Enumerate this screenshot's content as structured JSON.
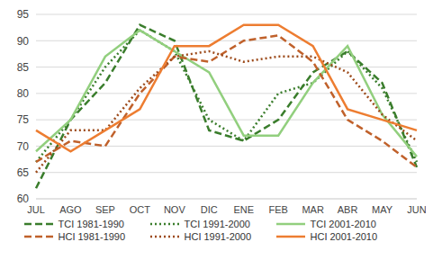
{
  "chart_data": {
    "type": "line",
    "categories": [
      "JUL",
      "AGO",
      "SEP",
      "OCT",
      "NOV",
      "DIC",
      "ENE",
      "FEB",
      "MAR",
      "ABR",
      "MAY",
      "JUN"
    ],
    "series": [
      {
        "name": "TCI 1981-1990",
        "color": "#3a7d2c",
        "line_style": "dashed",
        "values": [
          62,
          75,
          82,
          93,
          90,
          73,
          71,
          75,
          84,
          88,
          82,
          66
        ]
      },
      {
        "name": "TCI 1991-2000",
        "color": "#3a7d2c",
        "line_style": "dotted",
        "values": [
          67,
          75,
          85,
          92,
          88,
          75,
          71,
          80,
          82,
          88,
          81,
          67
        ]
      },
      {
        "name": "TCI 2001-2010",
        "color": "#92cf7e",
        "line_style": "solid",
        "values": [
          69,
          75,
          87,
          92,
          88,
          84,
          72,
          72,
          82,
          89,
          76,
          68
        ]
      },
      {
        "name": "HCI 1981-1990",
        "color": "#c0612b",
        "line_style": "dashed",
        "values": [
          67,
          71,
          70,
          80,
          87,
          86,
          90,
          91,
          86,
          75,
          71,
          66
        ]
      },
      {
        "name": "HCI 1991-2000",
        "color": "#9c4a1a",
        "line_style": "dotted",
        "values": [
          65,
          73,
          73,
          81,
          87,
          88,
          86,
          87,
          87,
          84,
          76,
          71
        ]
      },
      {
        "name": "HCI 2001-2010",
        "color": "#ed7d31",
        "line_style": "solid",
        "values": [
          73,
          69,
          73,
          77,
          89,
          89,
          93,
          93,
          89,
          77,
          75,
          73
        ]
      }
    ],
    "ylim": [
      60,
      95
    ],
    "yticks": [
      60,
      65,
      70,
      75,
      80,
      85,
      90,
      95
    ],
    "grid": true,
    "legend": "bottom"
  }
}
